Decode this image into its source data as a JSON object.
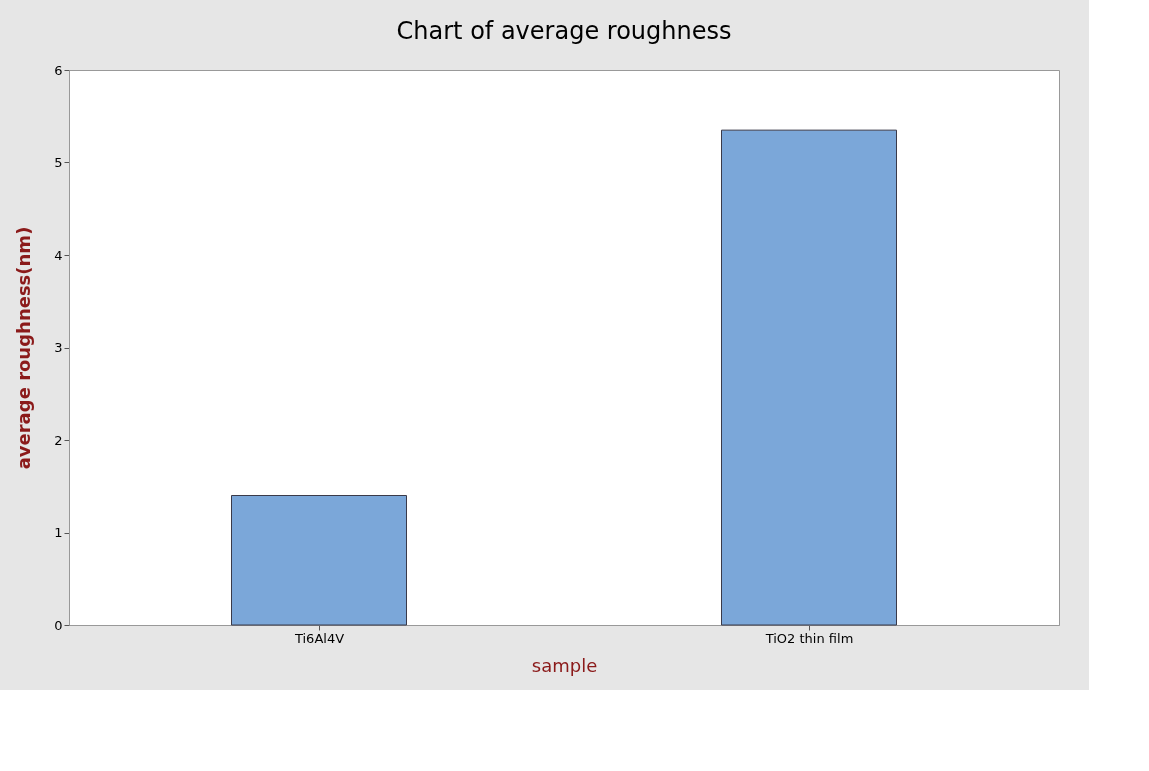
{
  "chart_data": {
    "type": "bar",
    "title": "Chart of average roughness",
    "xlabel": "sample",
    "ylabel": "average roughness(nm)",
    "categories": [
      "Ti6Al4V",
      "TiO2 thin film"
    ],
    "values": [
      1.4,
      5.35
    ],
    "color": "#7ba7d9",
    "ylim": [
      0,
      6
    ],
    "yticks": [
      0,
      1,
      2,
      3,
      4,
      5,
      6
    ],
    "grid": false
  }
}
